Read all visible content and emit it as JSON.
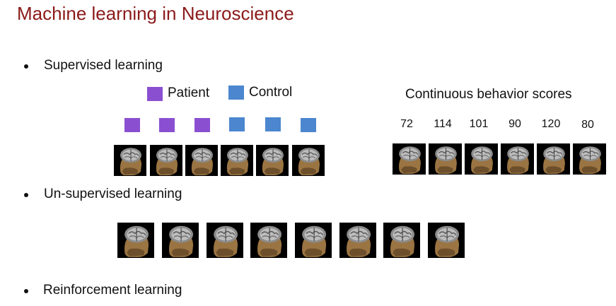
{
  "slide": {
    "title": "Machine learning in Neuroscience",
    "bullets": [
      "Supervised learning",
      "Un-supervised learning",
      "Reinforcement learning"
    ],
    "legend": {
      "patient_label": "Patient",
      "control_label": "Control",
      "patient_color": "#8a4fd1",
      "control_color": "#4b86cf"
    },
    "continuous_heading": "Continuous behavior scores",
    "scores": [
      "72",
      "114",
      "101",
      "90",
      "120",
      "80"
    ],
    "supervised_labels": [
      "patient",
      "patient",
      "patient",
      "control",
      "control",
      "control"
    ],
    "brain_icon": "brain-mri-head-icon"
  }
}
